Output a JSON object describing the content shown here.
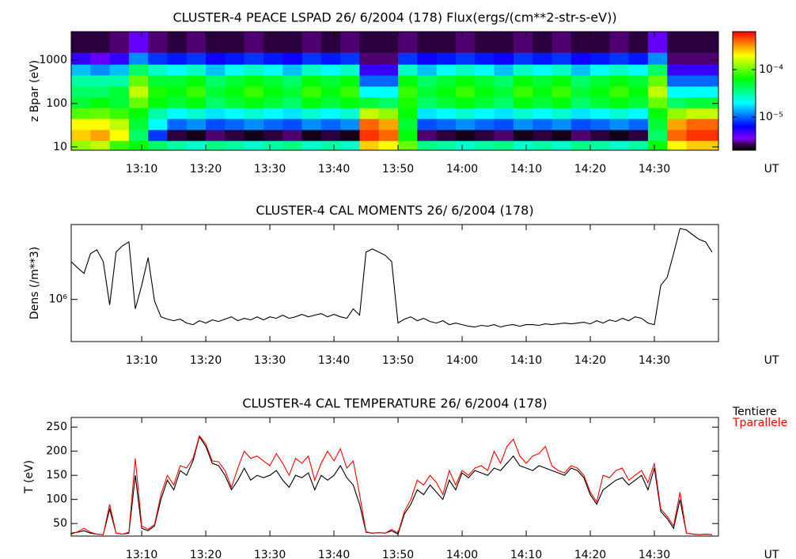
{
  "chart_data": [
    {
      "type": "heatmap",
      "title": "CLUSTER-4  PEACE LSPAD 26/ 6/2004 (178) Flux(ergs/(cm**2-str-s-eV))",
      "ylabel": "z Bpar (eV)",
      "xlabel": "UT",
      "xlim": [
        "12:59",
        "14:40"
      ],
      "xticks": [
        "13:10",
        "13:20",
        "13:30",
        "13:40",
        "13:50",
        "14:00",
        "14:10",
        "14:20",
        "14:30"
      ],
      "ylim": [
        8.4,
        4500
      ],
      "yticks": [
        10,
        100,
        1000
      ],
      "log_y": true,
      "zlim": [
        2e-06,
        0.00063
      ],
      "zticks": [
        {
          "value": 1e-05,
          "label": "10⁻⁵"
        },
        {
          "value": 0.0001,
          "label": "10⁻⁴"
        }
      ],
      "log_z": true,
      "x_bins": [
        "12:59",
        "13:02",
        "13:05",
        "13:08",
        "13:11",
        "13:14",
        "13:17",
        "13:20",
        "13:23",
        "13:26",
        "13:29",
        "13:32",
        "13:35",
        "13:38",
        "13:41",
        "13:44",
        "13:47",
        "13:50",
        "13:53",
        "13:56",
        "13:59",
        "14:02",
        "14:05",
        "14:08",
        "14:11",
        "14:14",
        "14:17",
        "14:20",
        "14:23",
        "14:26",
        "14:29",
        "14:32",
        "14:35",
        "14:38",
        "14:40"
      ],
      "y_bins": [
        8.4,
        14,
        25,
        45,
        80,
        140,
        250,
        450,
        800,
        1500,
        4500
      ],
      "values": [
        [
          0.00012,
          0.00025,
          0.0002,
          9e-05,
          5e-05,
          4e-05,
          3e-05,
          1.5e-05,
          5e-06,
          2.5e-06
        ],
        [
          0.00015,
          0.0003,
          0.0002,
          0.0001,
          6e-05,
          4e-05,
          3e-05,
          1.2e-05,
          4e-06,
          2.5e-06
        ],
        [
          8e-05,
          0.0002,
          0.00015,
          8e-05,
          5e-05,
          5e-05,
          3e-05,
          1.5e-05,
          5e-06,
          3e-06
        ],
        [
          6e-05,
          4e-05,
          5e-05,
          6e-05,
          0.0001,
          0.00015,
          0.0001,
          4e-05,
          1.2e-05,
          4e-06
        ],
        [
          4e-05,
          8e-06,
          2e-05,
          3e-05,
          6e-05,
          7e-05,
          5e-05,
          2.5e-05,
          8e-06,
          3e-06
        ],
        [
          3e-05,
          2.5e-06,
          1e-05,
          2e-05,
          5e-05,
          6e-05,
          5e-05,
          2e-05,
          7e-06,
          2.5e-06
        ],
        [
          2.5e-05,
          2.2e-06,
          1.2e-05,
          2.5e-05,
          6e-05,
          8e-05,
          6e-05,
          2.5e-05,
          8e-06,
          3e-06
        ],
        [
          3.5e-05,
          3e-06,
          9e-06,
          1.8e-05,
          4e-05,
          5e-05,
          4e-05,
          1.5e-05,
          6e-06,
          2.5e-06
        ],
        [
          3e-05,
          2.5e-06,
          1e-05,
          2e-05,
          5e-05,
          6e-05,
          5e-05,
          2e-05,
          7e-06,
          2.5e-06
        ],
        [
          2.5e-05,
          2.2e-06,
          1.2e-05,
          2.5e-05,
          6e-05,
          8e-05,
          6e-05,
          2.5e-05,
          8e-06,
          3e-06
        ],
        [
          3e-05,
          2.5e-06,
          1e-05,
          2e-05,
          5e-05,
          6e-05,
          5e-05,
          2e-05,
          7e-06,
          2.5e-06
        ],
        [
          3.5e-05,
          3e-06,
          9e-06,
          1.8e-05,
          4e-05,
          5e-05,
          4e-05,
          1.5e-05,
          6e-06,
          2.5e-06
        ],
        [
          2.5e-05,
          2.2e-06,
          1.2e-05,
          2.5e-05,
          6e-05,
          8e-05,
          6e-05,
          2.5e-05,
          8e-06,
          3e-06
        ],
        [
          3e-05,
          2.5e-06,
          1e-05,
          2e-05,
          5e-05,
          6e-05,
          5e-05,
          2e-05,
          7e-06,
          2.5e-06
        ],
        [
          2.5e-05,
          2.2e-06,
          1.2e-05,
          2.5e-05,
          6e-05,
          8e-05,
          6e-05,
          2.5e-05,
          8e-06,
          3e-06
        ],
        [
          0.00025,
          0.0005,
          0.0004,
          0.00015,
          5e-05,
          2e-05,
          1e-05,
          5e-06,
          3e-06,
          2.5e-06
        ],
        [
          0.0002,
          0.0004,
          0.0003,
          0.00012,
          4e-05,
          2e-05,
          1e-05,
          5e-06,
          3e-06,
          2.5e-06
        ],
        [
          0.0001,
          6e-05,
          5e-05,
          6e-05,
          7e-05,
          8e-05,
          6e-05,
          2.5e-05,
          8e-06,
          3e-06
        ],
        [
          3.5e-05,
          3e-06,
          9e-06,
          1.8e-05,
          4e-05,
          5e-05,
          4e-05,
          1.5e-05,
          6e-06,
          2.5e-06
        ],
        [
          3e-05,
          2.5e-06,
          1e-05,
          2e-05,
          5e-05,
          6e-05,
          5e-05,
          2e-05,
          7e-06,
          2.5e-06
        ],
        [
          2.5e-05,
          2.2e-06,
          1.2e-05,
          2.5e-05,
          6e-05,
          8e-05,
          6e-05,
          2.5e-05,
          8e-06,
          3e-06
        ],
        [
          3e-05,
          2.5e-06,
          1e-05,
          2e-05,
          5e-05,
          6e-05,
          5e-05,
          2e-05,
          7e-06,
          2.5e-06
        ],
        [
          3.5e-05,
          3e-06,
          9e-06,
          1.8e-05,
          4e-05,
          5e-05,
          4e-05,
          1.5e-05,
          6e-06,
          2.5e-06
        ],
        [
          2.5e-05,
          2.2e-06,
          1.2e-05,
          2.5e-05,
          6e-05,
          8e-05,
          6e-05,
          2.5e-05,
          8e-06,
          3e-06
        ],
        [
          3e-05,
          2.5e-06,
          1e-05,
          2e-05,
          5e-05,
          6e-05,
          5e-05,
          2e-05,
          7e-06,
          2.5e-06
        ],
        [
          2.5e-05,
          2.2e-06,
          1.2e-05,
          2.5e-05,
          6e-05,
          8e-05,
          6e-05,
          2.5e-05,
          8e-06,
          3e-06
        ],
        [
          3.5e-05,
          3e-06,
          9e-06,
          1.8e-05,
          4e-05,
          5e-05,
          4e-05,
          1.5e-05,
          6e-06,
          2.5e-06
        ],
        [
          3e-05,
          2.5e-06,
          1e-05,
          2e-05,
          5e-05,
          6e-05,
          5e-05,
          2e-05,
          7e-06,
          2.5e-06
        ],
        [
          2.5e-05,
          2.2e-06,
          1.2e-05,
          2.5e-05,
          6e-05,
          8e-05,
          6e-05,
          2.5e-05,
          8e-06,
          3e-06
        ],
        [
          3e-05,
          2.5e-06,
          1e-05,
          2e-05,
          5e-05,
          6e-05,
          5e-05,
          2e-05,
          7e-06,
          2.5e-06
        ],
        [
          6e-05,
          4e-05,
          5e-05,
          6e-05,
          0.0001,
          0.00015,
          0.0001,
          4e-05,
          1.2e-05,
          4e-06
        ],
        [
          0.0002,
          0.0004,
          0.0003,
          0.00012,
          4e-05,
          2e-05,
          1e-05,
          5e-06,
          3e-06,
          2.5e-06
        ],
        [
          0.00025,
          0.0005,
          0.0004,
          0.00015,
          5e-05,
          2e-05,
          1e-05,
          5e-06,
          3e-06,
          2.5e-06
        ],
        [
          0.00025,
          0.0005,
          0.0004,
          0.00015,
          5e-05,
          2e-05,
          1e-05,
          5e-06,
          3e-06,
          2.5e-06
        ]
      ]
    },
    {
      "type": "line",
      "title": "CLUSTER-4 CAL MOMENTS 26/ 6/2004 (178)",
      "ylabel": "Dens (/m**3)",
      "xlabel": "UT",
      "xlim": [
        "12:59",
        "14:40"
      ],
      "xticks": [
        "13:10",
        "13:20",
        "13:30",
        "13:40",
        "13:50",
        "14:00",
        "14:10",
        "14:20",
        "14:30"
      ],
      "ylim": [
        440000,
        4300000
      ],
      "yticks": [
        {
          "value": 1000000,
          "label": "10⁶"
        }
      ],
      "log_y": true,
      "color": "#000000",
      "x": [
        "12:59",
        "13:00",
        "13:01",
        "13:02",
        "13:03",
        "13:04",
        "13:05",
        "13:06",
        "13:07",
        "13:08",
        "13:09",
        "13:10",
        "13:11",
        "13:12",
        "13:13",
        "13:14",
        "13:15",
        "13:16",
        "13:17",
        "13:18",
        "13:19",
        "13:20",
        "13:21",
        "13:22",
        "13:23",
        "13:24",
        "13:25",
        "13:26",
        "13:27",
        "13:28",
        "13:29",
        "13:30",
        "13:31",
        "13:32",
        "13:33",
        "13:34",
        "13:35",
        "13:36",
        "13:37",
        "13:38",
        "13:39",
        "13:40",
        "13:41",
        "13:42",
        "13:43",
        "13:44",
        "13:45",
        "13:46",
        "13:47",
        "13:48",
        "13:49",
        "13:50",
        "13:51",
        "13:52",
        "13:53",
        "13:54",
        "13:55",
        "13:56",
        "13:57",
        "13:58",
        "13:59",
        "14:00",
        "14:01",
        "14:02",
        "14:03",
        "14:04",
        "14:05",
        "14:06",
        "14:07",
        "14:08",
        "14:09",
        "14:10",
        "14:11",
        "14:12",
        "14:13",
        "14:14",
        "14:15",
        "14:16",
        "14:17",
        "14:18",
        "14:19",
        "14:20",
        "14:21",
        "14:22",
        "14:23",
        "14:24",
        "14:25",
        "14:26",
        "14:27",
        "14:28",
        "14:29",
        "14:30",
        "14:31",
        "14:32",
        "14:33",
        "14:34",
        "14:35",
        "14:36",
        "14:37",
        "14:38",
        "14:39"
      ],
      "values": [
        2089000,
        1848000,
        1660000,
        2436000,
        2630000,
        2089000,
        898000,
        2512000,
        2840000,
        3069000,
        832000,
        1318000,
        2259000,
        970000,
        713000,
        681000,
        661000,
        681000,
        631000,
        612000,
        661000,
        631000,
        671000,
        651000,
        681000,
        713000,
        661000,
        692000,
        671000,
        713000,
        671000,
        713000,
        692000,
        736000,
        692000,
        713000,
        747000,
        713000,
        736000,
        759000,
        713000,
        747000,
        713000,
        692000,
        832000,
        736000,
        2512000,
        2670000,
        2512000,
        2363000,
        2089000,
        631000,
        681000,
        713000,
        661000,
        692000,
        651000,
        631000,
        661000,
        612000,
        631000,
        612000,
        593000,
        584000,
        603000,
        593000,
        612000,
        584000,
        603000,
        612000,
        593000,
        612000,
        612000,
        603000,
        621000,
        612000,
        621000,
        631000,
        621000,
        631000,
        641000,
        621000,
        661000,
        631000,
        671000,
        651000,
        692000,
        661000,
        713000,
        692000,
        631000,
        612000,
        1318000,
        1537000,
        2436000,
        3981000,
        3864000,
        3521000,
        3216000,
        3069000,
        2512000
      ]
    },
    {
      "type": "line",
      "title": "CLUSTER-4 CAL TEMPERATURE 26/ 6/2004 (178)",
      "ylabel": "T (eV)",
      "xlabel": "UT",
      "xlim": [
        "12:59",
        "14:40"
      ],
      "xticks": [
        "13:10",
        "13:20",
        "13:30",
        "13:40",
        "13:50",
        "14:00",
        "14:10",
        "14:20",
        "14:30"
      ],
      "ylim": [
        24,
        270
      ],
      "yticks": [
        50,
        100,
        150,
        200,
        250
      ],
      "log_y": false,
      "legend": "outside-top-right",
      "x": [
        "12:59",
        "13:00",
        "13:01",
        "13:02",
        "13:03",
        "13:04",
        "13:05",
        "13:06",
        "13:07",
        "13:08",
        "13:09",
        "13:10",
        "13:11",
        "13:12",
        "13:13",
        "13:14",
        "13:15",
        "13:16",
        "13:17",
        "13:18",
        "13:19",
        "13:20",
        "13:21",
        "13:22",
        "13:23",
        "13:24",
        "13:25",
        "13:26",
        "13:27",
        "13:28",
        "13:29",
        "13:30",
        "13:31",
        "13:32",
        "13:33",
        "13:34",
        "13:35",
        "13:36",
        "13:37",
        "13:38",
        "13:39",
        "13:40",
        "13:41",
        "13:42",
        "13:43",
        "13:44",
        "13:45",
        "13:46",
        "13:47",
        "13:48",
        "13:49",
        "13:50",
        "13:51",
        "13:52",
        "13:53",
        "13:54",
        "13:55",
        "13:56",
        "13:57",
        "13:58",
        "13:59",
        "14:00",
        "14:01",
        "14:02",
        "14:03",
        "14:04",
        "14:05",
        "14:06",
        "14:07",
        "14:08",
        "14:09",
        "14:10",
        "14:11",
        "14:12",
        "14:13",
        "14:14",
        "14:15",
        "14:16",
        "14:17",
        "14:18",
        "14:19",
        "14:20",
        "14:21",
        "14:22",
        "14:23",
        "14:24",
        "14:25",
        "14:26",
        "14:27",
        "14:28",
        "14:29",
        "14:30",
        "14:31",
        "14:32",
        "14:33",
        "14:34",
        "14:35",
        "14:36",
        "14:37",
        "14:38",
        "14:39"
      ],
      "series": [
        {
          "name": "Tentiere",
          "color": "#000000",
          "values": [
            30,
            32,
            35,
            30,
            28,
            27,
            80,
            30,
            28,
            30,
            150,
            40,
            35,
            45,
            100,
            140,
            120,
            160,
            150,
            180,
            230,
            210,
            175,
            170,
            150,
            120,
            140,
            165,
            140,
            150,
            145,
            150,
            160,
            140,
            125,
            150,
            145,
            155,
            120,
            150,
            140,
            150,
            170,
            145,
            130,
            90,
            32,
            30,
            31,
            30,
            35,
            28,
            70,
            90,
            120,
            110,
            130,
            115,
            100,
            140,
            120,
            155,
            145,
            160,
            155,
            150,
            165,
            160,
            175,
            190,
            170,
            165,
            160,
            170,
            165,
            160,
            155,
            150,
            165,
            160,
            145,
            110,
            90,
            120,
            130,
            140,
            145,
            130,
            140,
            150,
            120,
            165,
            75,
            60,
            40,
            100,
            30,
            28,
            27,
            28,
            27
          ]
        },
        {
          "name": "Tparallele",
          "color": "#ff0000",
          "values": [
            28,
            33,
            40,
            32,
            28,
            27,
            90,
            30,
            28,
            32,
            185,
            45,
            38,
            48,
            110,
            150,
            130,
            170,
            165,
            185,
            232,
            215,
            180,
            178,
            160,
            125,
            165,
            200,
            185,
            190,
            180,
            170,
            195,
            175,
            150,
            185,
            175,
            190,
            140,
            175,
            200,
            180,
            205,
            165,
            180,
            110,
            33,
            30,
            31,
            30,
            38,
            30,
            75,
            100,
            140,
            130,
            150,
            135,
            110,
            160,
            130,
            160,
            150,
            165,
            170,
            160,
            200,
            175,
            210,
            225,
            190,
            175,
            190,
            195,
            210,
            170,
            160,
            155,
            170,
            165,
            150,
            115,
            95,
            150,
            145,
            160,
            165,
            140,
            150,
            160,
            135,
            175,
            80,
            65,
            45,
            115,
            30,
            28,
            27,
            28,
            27
          ]
        }
      ]
    }
  ]
}
